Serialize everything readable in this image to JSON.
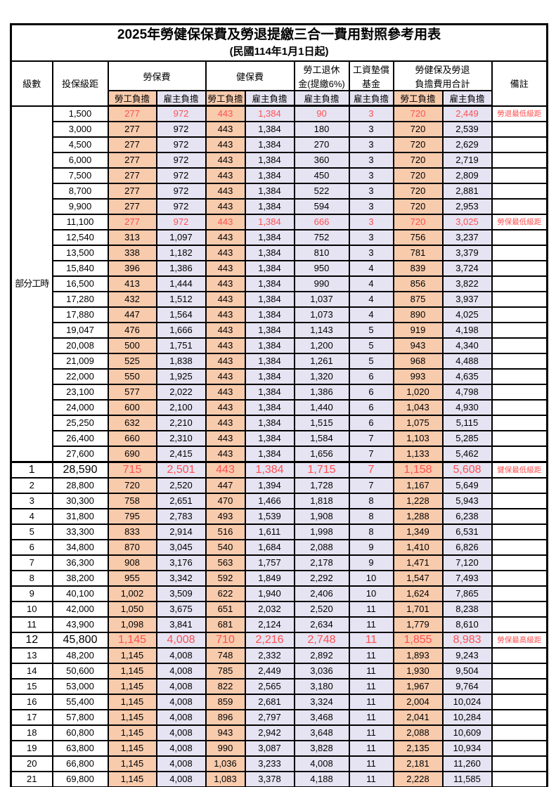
{
  "title": "2025年勞健保保費及勞退提繳三合一費用對照參考用表",
  "subtitle": "(民國114年1月1日起)",
  "columns": {
    "level": "級數",
    "bracket": "投保級距",
    "labor_insurance": "勞保費",
    "health_insurance": "健保費",
    "pension_line1": "勞工退休",
    "pension_line2": "金(提繳6%)",
    "wage_fund_line1": "工資墊償",
    "wage_fund_line2": "基金",
    "total_line1": "勞健保及勞退",
    "total_line2": "負擔費用合計",
    "employee_share": "勞工負擔",
    "employer_share": "雇主負擔",
    "remarks": "備註"
  },
  "part_time_label": "部分工時",
  "colors": {
    "employee_bg": "#F8CBAD",
    "employer_bg": "#E6E3F2",
    "highlight_text": "#FF5050"
  },
  "rows": [
    {
      "level": "",
      "bracket": "1,500",
      "labor_emp": "277",
      "labor_er": "972",
      "health_emp": "443",
      "health_er": "1,384",
      "pension_er": "90",
      "wage_fund_er": "3",
      "total_emp": "720",
      "total_er": "2,449",
      "note": "勞退最低級距",
      "red": true,
      "big": false
    },
    {
      "level": "",
      "bracket": "3,000",
      "labor_emp": "277",
      "labor_er": "972",
      "health_emp": "443",
      "health_er": "1,384",
      "pension_er": "180",
      "wage_fund_er": "3",
      "total_emp": "720",
      "total_er": "2,539",
      "note": "",
      "red": false,
      "big": false
    },
    {
      "level": "",
      "bracket": "4,500",
      "labor_emp": "277",
      "labor_er": "972",
      "health_emp": "443",
      "health_er": "1,384",
      "pension_er": "270",
      "wage_fund_er": "3",
      "total_emp": "720",
      "total_er": "2,629",
      "note": "",
      "red": false,
      "big": false
    },
    {
      "level": "",
      "bracket": "6,000",
      "labor_emp": "277",
      "labor_er": "972",
      "health_emp": "443",
      "health_er": "1,384",
      "pension_er": "360",
      "wage_fund_er": "3",
      "total_emp": "720",
      "total_er": "2,719",
      "note": "",
      "red": false,
      "big": false
    },
    {
      "level": "",
      "bracket": "7,500",
      "labor_emp": "277",
      "labor_er": "972",
      "health_emp": "443",
      "health_er": "1,384",
      "pension_er": "450",
      "wage_fund_er": "3",
      "total_emp": "720",
      "total_er": "2,809",
      "note": "",
      "red": false,
      "big": false
    },
    {
      "level": "",
      "bracket": "8,700",
      "labor_emp": "277",
      "labor_er": "972",
      "health_emp": "443",
      "health_er": "1,384",
      "pension_er": "522",
      "wage_fund_er": "3",
      "total_emp": "720",
      "total_er": "2,881",
      "note": "",
      "red": false,
      "big": false
    },
    {
      "level": "",
      "bracket": "9,900",
      "labor_emp": "277",
      "labor_er": "972",
      "health_emp": "443",
      "health_er": "1,384",
      "pension_er": "594",
      "wage_fund_er": "3",
      "total_emp": "720",
      "total_er": "2,953",
      "note": "",
      "red": false,
      "big": false
    },
    {
      "level": "",
      "bracket": "11,100",
      "labor_emp": "277",
      "labor_er": "972",
      "health_emp": "443",
      "health_er": "1,384",
      "pension_er": "666",
      "wage_fund_er": "3",
      "total_emp": "720",
      "total_er": "3,025",
      "note": "勞保最低級距",
      "red": true,
      "big": false
    },
    {
      "level": "",
      "bracket": "12,540",
      "labor_emp": "313",
      "labor_er": "1,097",
      "health_emp": "443",
      "health_er": "1,384",
      "pension_er": "752",
      "wage_fund_er": "3",
      "total_emp": "756",
      "total_er": "3,237",
      "note": "",
      "red": false,
      "big": false
    },
    {
      "level": "",
      "bracket": "13,500",
      "labor_emp": "338",
      "labor_er": "1,182",
      "health_emp": "443",
      "health_er": "1,384",
      "pension_er": "810",
      "wage_fund_er": "3",
      "total_emp": "781",
      "total_er": "3,379",
      "note": "",
      "red": false,
      "big": false
    },
    {
      "level": "",
      "bracket": "15,840",
      "labor_emp": "396",
      "labor_er": "1,386",
      "health_emp": "443",
      "health_er": "1,384",
      "pension_er": "950",
      "wage_fund_er": "4",
      "total_emp": "839",
      "total_er": "3,724",
      "note": "",
      "red": false,
      "big": false
    },
    {
      "level": "",
      "bracket": "16,500",
      "labor_emp": "413",
      "labor_er": "1,444",
      "health_emp": "443",
      "health_er": "1,384",
      "pension_er": "990",
      "wage_fund_er": "4",
      "total_emp": "856",
      "total_er": "3,822",
      "note": "",
      "red": false,
      "big": false
    },
    {
      "level": "",
      "bracket": "17,280",
      "labor_emp": "432",
      "labor_er": "1,512",
      "health_emp": "443",
      "health_er": "1,384",
      "pension_er": "1,037",
      "wage_fund_er": "4",
      "total_emp": "875",
      "total_er": "3,937",
      "note": "",
      "red": false,
      "big": false
    },
    {
      "level": "",
      "bracket": "17,880",
      "labor_emp": "447",
      "labor_er": "1,564",
      "health_emp": "443",
      "health_er": "1,384",
      "pension_er": "1,073",
      "wage_fund_er": "4",
      "total_emp": "890",
      "total_er": "4,025",
      "note": "",
      "red": false,
      "big": false
    },
    {
      "level": "",
      "bracket": "19,047",
      "labor_emp": "476",
      "labor_er": "1,666",
      "health_emp": "443",
      "health_er": "1,384",
      "pension_er": "1,143",
      "wage_fund_er": "5",
      "total_emp": "919",
      "total_er": "4,198",
      "note": "",
      "red": false,
      "big": false
    },
    {
      "level": "",
      "bracket": "20,008",
      "labor_emp": "500",
      "labor_er": "1,751",
      "health_emp": "443",
      "health_er": "1,384",
      "pension_er": "1,200",
      "wage_fund_er": "5",
      "total_emp": "943",
      "total_er": "4,340",
      "note": "",
      "red": false,
      "big": false
    },
    {
      "level": "",
      "bracket": "21,009",
      "labor_emp": "525",
      "labor_er": "1,838",
      "health_emp": "443",
      "health_er": "1,384",
      "pension_er": "1,261",
      "wage_fund_er": "5",
      "total_emp": "968",
      "total_er": "4,488",
      "note": "",
      "red": false,
      "big": false
    },
    {
      "level": "",
      "bracket": "22,000",
      "labor_emp": "550",
      "labor_er": "1,925",
      "health_emp": "443",
      "health_er": "1,384",
      "pension_er": "1,320",
      "wage_fund_er": "6",
      "total_emp": "993",
      "total_er": "4,635",
      "note": "",
      "red": false,
      "big": false
    },
    {
      "level": "",
      "bracket": "23,100",
      "labor_emp": "577",
      "labor_er": "2,022",
      "health_emp": "443",
      "health_er": "1,384",
      "pension_er": "1,386",
      "wage_fund_er": "6",
      "total_emp": "1,020",
      "total_er": "4,798",
      "note": "",
      "red": false,
      "big": false
    },
    {
      "level": "",
      "bracket": "24,000",
      "labor_emp": "600",
      "labor_er": "2,100",
      "health_emp": "443",
      "health_er": "1,384",
      "pension_er": "1,440",
      "wage_fund_er": "6",
      "total_emp": "1,043",
      "total_er": "4,930",
      "note": "",
      "red": false,
      "big": false
    },
    {
      "level": "",
      "bracket": "25,250",
      "labor_emp": "632",
      "labor_er": "2,210",
      "health_emp": "443",
      "health_er": "1,384",
      "pension_er": "1,515",
      "wage_fund_er": "6",
      "total_emp": "1,075",
      "total_er": "5,115",
      "note": "",
      "red": false,
      "big": false
    },
    {
      "level": "",
      "bracket": "26,400",
      "labor_emp": "660",
      "labor_er": "2,310",
      "health_emp": "443",
      "health_er": "1,384",
      "pension_er": "1,584",
      "wage_fund_er": "7",
      "total_emp": "1,103",
      "total_er": "5,285",
      "note": "",
      "red": false,
      "big": false
    },
    {
      "level": "",
      "bracket": "27,600",
      "labor_emp": "690",
      "labor_er": "2,415",
      "health_emp": "443",
      "health_er": "1,384",
      "pension_er": "1,656",
      "wage_fund_er": "7",
      "total_emp": "1,133",
      "total_er": "5,462",
      "note": "",
      "red": false,
      "big": false
    },
    {
      "level": "1",
      "bracket": "28,590",
      "labor_emp": "715",
      "labor_er": "2,501",
      "health_emp": "443",
      "health_er": "1,384",
      "pension_er": "1,715",
      "wage_fund_er": "7",
      "total_emp": "1,158",
      "total_er": "5,608",
      "note": "健保最低級距",
      "red": true,
      "big": true
    },
    {
      "level": "2",
      "bracket": "28,800",
      "labor_emp": "720",
      "labor_er": "2,520",
      "health_emp": "447",
      "health_er": "1,394",
      "pension_er": "1,728",
      "wage_fund_er": "7",
      "total_emp": "1,167",
      "total_er": "5,649",
      "note": "",
      "red": false,
      "big": false
    },
    {
      "level": "3",
      "bracket": "30,300",
      "labor_emp": "758",
      "labor_er": "2,651",
      "health_emp": "470",
      "health_er": "1,466",
      "pension_er": "1,818",
      "wage_fund_er": "8",
      "total_emp": "1,228",
      "total_er": "5,943",
      "note": "",
      "red": false,
      "big": false
    },
    {
      "level": "4",
      "bracket": "31,800",
      "labor_emp": "795",
      "labor_er": "2,783",
      "health_emp": "493",
      "health_er": "1,539",
      "pension_er": "1,908",
      "wage_fund_er": "8",
      "total_emp": "1,288",
      "total_er": "6,238",
      "note": "",
      "red": false,
      "big": false
    },
    {
      "level": "5",
      "bracket": "33,300",
      "labor_emp": "833",
      "labor_er": "2,914",
      "health_emp": "516",
      "health_er": "1,611",
      "pension_er": "1,998",
      "wage_fund_er": "8",
      "total_emp": "1,349",
      "total_er": "6,531",
      "note": "",
      "red": false,
      "big": false
    },
    {
      "level": "6",
      "bracket": "34,800",
      "labor_emp": "870",
      "labor_er": "3,045",
      "health_emp": "540",
      "health_er": "1,684",
      "pension_er": "2,088",
      "wage_fund_er": "9",
      "total_emp": "1,410",
      "total_er": "6,826",
      "note": "",
      "red": false,
      "big": false
    },
    {
      "level": "7",
      "bracket": "36,300",
      "labor_emp": "908",
      "labor_er": "3,176",
      "health_emp": "563",
      "health_er": "1,757",
      "pension_er": "2,178",
      "wage_fund_er": "9",
      "total_emp": "1,471",
      "total_er": "7,120",
      "note": "",
      "red": false,
      "big": false
    },
    {
      "level": "8",
      "bracket": "38,200",
      "labor_emp": "955",
      "labor_er": "3,342",
      "health_emp": "592",
      "health_er": "1,849",
      "pension_er": "2,292",
      "wage_fund_er": "10",
      "total_emp": "1,547",
      "total_er": "7,493",
      "note": "",
      "red": false,
      "big": false
    },
    {
      "level": "9",
      "bracket": "40,100",
      "labor_emp": "1,002",
      "labor_er": "3,509",
      "health_emp": "622",
      "health_er": "1,940",
      "pension_er": "2,406",
      "wage_fund_er": "10",
      "total_emp": "1,624",
      "total_er": "7,865",
      "note": "",
      "red": false,
      "big": false
    },
    {
      "level": "10",
      "bracket": "42,000",
      "labor_emp": "1,050",
      "labor_er": "3,675",
      "health_emp": "651",
      "health_er": "2,032",
      "pension_er": "2,520",
      "wage_fund_er": "11",
      "total_emp": "1,701",
      "total_er": "8,238",
      "note": "",
      "red": false,
      "big": false
    },
    {
      "level": "11",
      "bracket": "43,900",
      "labor_emp": "1,098",
      "labor_er": "3,841",
      "health_emp": "681",
      "health_er": "2,124",
      "pension_er": "2,634",
      "wage_fund_er": "11",
      "total_emp": "1,779",
      "total_er": "8,610",
      "note": "",
      "red": false,
      "big": false
    },
    {
      "level": "12",
      "bracket": "45,800",
      "labor_emp": "1,145",
      "labor_er": "4,008",
      "health_emp": "710",
      "health_er": "2,216",
      "pension_er": "2,748",
      "wage_fund_er": "11",
      "total_emp": "1,855",
      "total_er": "8,983",
      "note": "勞保最高級距",
      "red": true,
      "big": true
    },
    {
      "level": "13",
      "bracket": "48,200",
      "labor_emp": "1,145",
      "labor_er": "4,008",
      "health_emp": "748",
      "health_er": "2,332",
      "pension_er": "2,892",
      "wage_fund_er": "11",
      "total_emp": "1,893",
      "total_er": "9,243",
      "note": "",
      "red": false,
      "big": false
    },
    {
      "level": "14",
      "bracket": "50,600",
      "labor_emp": "1,145",
      "labor_er": "4,008",
      "health_emp": "785",
      "health_er": "2,449",
      "pension_er": "3,036",
      "wage_fund_er": "11",
      "total_emp": "1,930",
      "total_er": "9,504",
      "note": "",
      "red": false,
      "big": false
    },
    {
      "level": "15",
      "bracket": "53,000",
      "labor_emp": "1,145",
      "labor_er": "4,008",
      "health_emp": "822",
      "health_er": "2,565",
      "pension_er": "3,180",
      "wage_fund_er": "11",
      "total_emp": "1,967",
      "total_er": "9,764",
      "note": "",
      "red": false,
      "big": false
    },
    {
      "level": "16",
      "bracket": "55,400",
      "labor_emp": "1,145",
      "labor_er": "4,008",
      "health_emp": "859",
      "health_er": "2,681",
      "pension_er": "3,324",
      "wage_fund_er": "11",
      "total_emp": "2,004",
      "total_er": "10,024",
      "note": "",
      "red": false,
      "big": false
    },
    {
      "level": "17",
      "bracket": "57,800",
      "labor_emp": "1,145",
      "labor_er": "4,008",
      "health_emp": "896",
      "health_er": "2,797",
      "pension_er": "3,468",
      "wage_fund_er": "11",
      "total_emp": "2,041",
      "total_er": "10,284",
      "note": "",
      "red": false,
      "big": false
    },
    {
      "level": "18",
      "bracket": "60,800",
      "labor_emp": "1,145",
      "labor_er": "4,008",
      "health_emp": "943",
      "health_er": "2,942",
      "pension_er": "3,648",
      "wage_fund_er": "11",
      "total_emp": "2,088",
      "total_er": "10,609",
      "note": "",
      "red": false,
      "big": false
    },
    {
      "level": "19",
      "bracket": "63,800",
      "labor_emp": "1,145",
      "labor_er": "4,008",
      "health_emp": "990",
      "health_er": "3,087",
      "pension_er": "3,828",
      "wage_fund_er": "11",
      "total_emp": "2,135",
      "total_er": "10,934",
      "note": "",
      "red": false,
      "big": false
    },
    {
      "level": "20",
      "bracket": "66,800",
      "labor_emp": "1,145",
      "labor_er": "4,008",
      "health_emp": "1,036",
      "health_er": "3,233",
      "pension_er": "4,008",
      "wage_fund_er": "11",
      "total_emp": "2,181",
      "total_er": "11,260",
      "note": "",
      "red": false,
      "big": false
    },
    {
      "level": "21",
      "bracket": "69,800",
      "labor_emp": "1,145",
      "labor_er": "4,008",
      "health_emp": "1,083",
      "health_er": "3,378",
      "pension_er": "4,188",
      "wage_fund_er": "11",
      "total_emp": "2,228",
      "total_er": "11,585",
      "note": "",
      "red": false,
      "big": false
    }
  ]
}
